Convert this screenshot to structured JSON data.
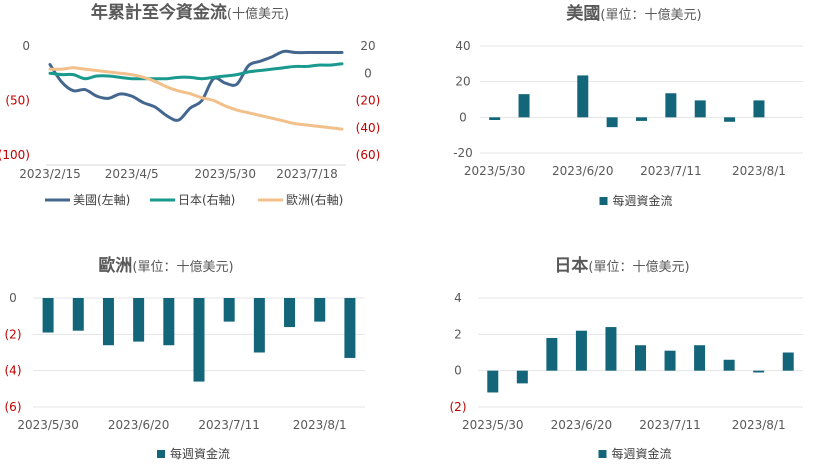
{
  "chart_data": [
    {
      "id": "cumulative",
      "type": "line",
      "title": "年累計至今資金流",
      "subtitle": "(十億美元)",
      "x": [
        "2023/2/15",
        "2023/2/22",
        "2023/3/1",
        "2023/3/8",
        "2023/3/15",
        "2023/3/22",
        "2023/3/29",
        "2023/4/5",
        "2023/4/12",
        "2023/4/19",
        "2023/4/26",
        "2023/5/3",
        "2023/5/10",
        "2023/5/17",
        "2023/5/24",
        "2023/5/30",
        "2023/6/7",
        "2023/6/14",
        "2023/6/21",
        "2023/6/28",
        "2023/7/5",
        "2023/7/11",
        "2023/7/18",
        "2023/7/25",
        "2023/8/1",
        "2023/8/8"
      ],
      "x_tick_labels": [
        "2023/2/15",
        "2023/4/5",
        "2023/5/30",
        "2023/7/18"
      ],
      "left_axis": {
        "ylim": [
          -100,
          0
        ],
        "tick_labels": [
          "0",
          "(50)",
          "(100)"
        ],
        "tick_values": [
          0,
          -50,
          -100
        ]
      },
      "right_axis": {
        "ylim": [
          -60,
          20
        ],
        "tick_labels": [
          "20",
          "0",
          "(20)",
          "(40)",
          "(60)"
        ],
        "tick_values": [
          20,
          0,
          -20,
          -40,
          -60
        ]
      },
      "series": [
        {
          "name": "美國(左軸)",
          "axis": "left",
          "color": "#44678f",
          "values": [
            -17,
            -33,
            -41,
            -40,
            -46,
            -48,
            -44,
            -46,
            -52,
            -56,
            -64,
            -68,
            -57,
            -50,
            -30,
            -34,
            -35,
            -18,
            -14,
            -10,
            -5,
            -6,
            -6,
            -6,
            -6,
            -6
          ]
        },
        {
          "name": "日本(右軸)",
          "axis": "right",
          "color": "#1a9a8e",
          "values": [
            0,
            -1,
            -1,
            -4,
            -2,
            -2,
            -3,
            -4,
            -4,
            -4,
            -4,
            -3,
            -3,
            -4,
            -3,
            -2,
            -1,
            1,
            2,
            3,
            4,
            5,
            5,
            6,
            6,
            7
          ]
        },
        {
          "name": "歐洲(右軸)",
          "axis": "right",
          "color": "#f2c08a",
          "values": [
            3,
            3,
            4,
            3,
            2,
            1,
            0,
            -1,
            -3,
            -6,
            -10,
            -13,
            -15,
            -18,
            -20,
            -24,
            -27,
            -29,
            -31,
            -33,
            -35,
            -37,
            -38,
            -39,
            -40,
            -41
          ]
        }
      ]
    },
    {
      "id": "us",
      "type": "bar",
      "title": "美國",
      "subtitle": "(單位：十億美元)",
      "categories": [
        "2023/5/30",
        "2023/6/7",
        "2023/6/14",
        "2023/6/20",
        "2023/6/28",
        "2023/7/5",
        "2023/7/11",
        "2023/7/18",
        "2023/7/25",
        "2023/8/1",
        "2023/8/8"
      ],
      "x_tick_labels": [
        "2023/5/30",
        "2023/6/20",
        "2023/7/11",
        "2023/8/1"
      ],
      "values": [
        -1.5,
        13,
        0,
        23.5,
        -5.5,
        -2,
        13.5,
        9.5,
        -2.5,
        9.5,
        0
      ],
      "ylim": [
        -20,
        40
      ],
      "tick_values": [
        40,
        20,
        0,
        -20
      ],
      "tick_labels": [
        "40",
        "20",
        "0",
        "-20"
      ],
      "color": "#13657a",
      "legend": "每週資金流"
    },
    {
      "id": "europe",
      "type": "bar",
      "title": "歐洲",
      "subtitle": "(單位：十億美元)",
      "categories": [
        "2023/5/30",
        "2023/6/7",
        "2023/6/14",
        "2023/6/20",
        "2023/6/28",
        "2023/7/5",
        "2023/7/11",
        "2023/7/18",
        "2023/7/25",
        "2023/8/1",
        "2023/8/8"
      ],
      "x_tick_labels": [
        "2023/5/30",
        "2023/6/20",
        "2023/7/11",
        "2023/8/1"
      ],
      "values": [
        -1.9,
        -1.8,
        -2.6,
        -2.4,
        -2.6,
        -4.6,
        -1.3,
        -3,
        -1.6,
        -1.3,
        -3.3
      ],
      "ylim": [
        -6,
        0
      ],
      "tick_values": [
        0,
        -2,
        -4,
        -6
      ],
      "tick_labels": [
        "0",
        "(2)",
        "(4)",
        "(6)"
      ],
      "color": "#13657a",
      "legend": "每週資金流"
    },
    {
      "id": "japan",
      "type": "bar",
      "title": "日本",
      "subtitle": "(單位：十億美元)",
      "categories": [
        "2023/5/30",
        "2023/6/7",
        "2023/6/14",
        "2023/6/20",
        "2023/6/28",
        "2023/7/5",
        "2023/7/11",
        "2023/7/18",
        "2023/7/25",
        "2023/8/1",
        "2023/8/8"
      ],
      "x_tick_labels": [
        "2023/5/30",
        "2023/6/20",
        "2023/7/11",
        "2023/8/1"
      ],
      "values": [
        -1.2,
        -0.7,
        1.8,
        2.2,
        2.4,
        1.4,
        1.1,
        1.4,
        0.6,
        -0.1,
        1
      ],
      "ylim": [
        -2,
        4
      ],
      "tick_values": [
        4,
        2,
        0,
        -2
      ],
      "tick_labels": [
        "4",
        "2",
        "0",
        "(2)"
      ],
      "color": "#13657a",
      "legend": "每週資金流"
    }
  ]
}
